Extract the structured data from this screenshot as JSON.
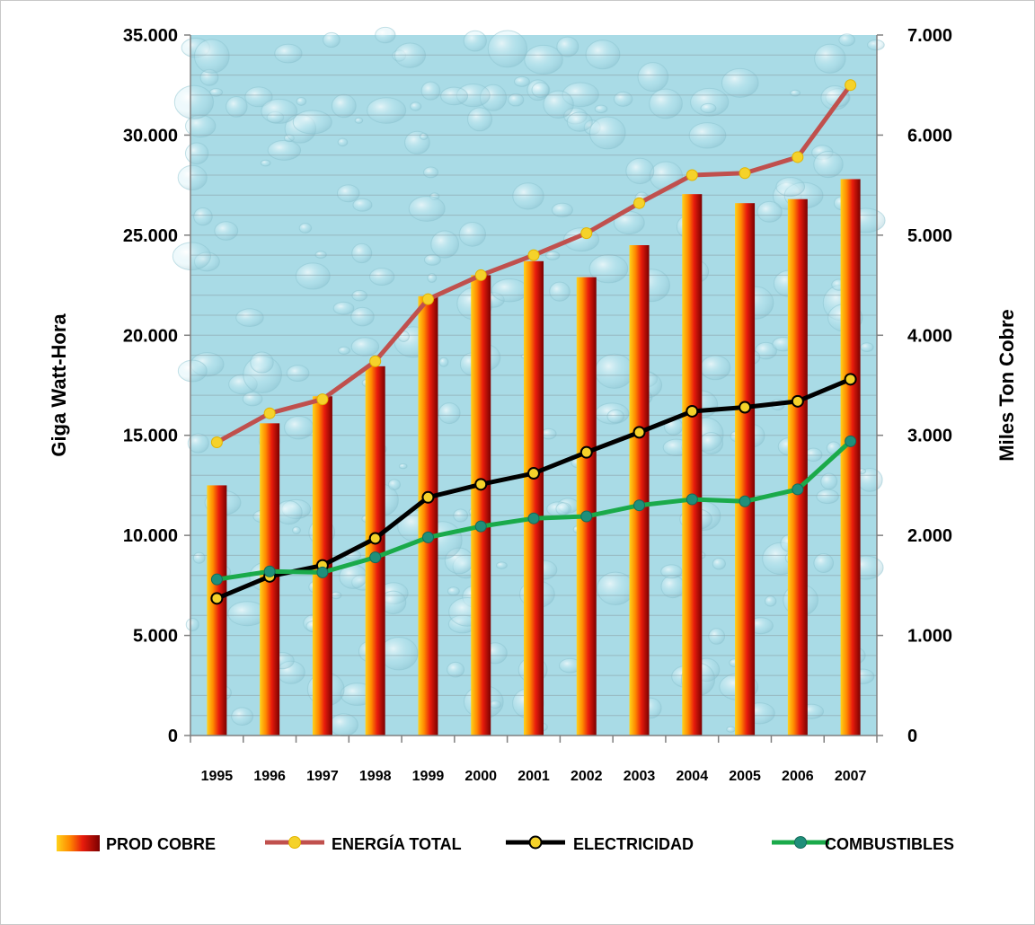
{
  "chart_data": {
    "type": "bar",
    "categories": [
      "1995",
      "1996",
      "1997",
      "1998",
      "1999",
      "2000",
      "2001",
      "2002",
      "2003",
      "2004",
      "2005",
      "2006",
      "2007"
    ],
    "y_left": {
      "label": "Giga Watt-Hora",
      "range": [
        0,
        35000
      ],
      "ticks": [
        "0",
        "5.000",
        "10.000",
        "15.000",
        "20.000",
        "25.000",
        "30.000",
        "35.000"
      ],
      "tick_values": [
        0,
        5000,
        10000,
        15000,
        20000,
        25000,
        30000,
        35000
      ]
    },
    "y_right": {
      "label": "Miles Ton Cobre",
      "range": [
        0,
        7000
      ],
      "ticks": [
        "0",
        "1.000",
        "2.000",
        "3.000",
        "4.000",
        "5.000",
        "6.000",
        "7.000"
      ],
      "tick_values": [
        0,
        1000,
        2000,
        3000,
        4000,
        5000,
        6000,
        7000
      ]
    },
    "series": [
      {
        "name": "PROD COBRE",
        "type": "bar",
        "axis": "right",
        "color": "#e2231a",
        "values": [
          2500,
          3120,
          3390,
          3690,
          4390,
          4600,
          4740,
          4580,
          4900,
          5410,
          5320,
          5360,
          5560
        ]
      },
      {
        "name": "ENERGÍA TOTAL",
        "type": "line",
        "axis": "left",
        "color": "#c0504d",
        "marker": "#f5d22a",
        "values": [
          14650,
          16100,
          16800,
          18700,
          21800,
          23000,
          24000,
          25100,
          26600,
          28000,
          28100,
          28900,
          32500
        ]
      },
      {
        "name": "ELECTRICIDAD",
        "type": "line",
        "axis": "left",
        "color": "#000000",
        "marker": "#f5d22a",
        "values": [
          6850,
          7950,
          8500,
          9850,
          11900,
          12550,
          13100,
          14150,
          15150,
          16200,
          16400,
          16700,
          17800
        ]
      },
      {
        "name": "COMBUSTIBLES",
        "type": "line",
        "axis": "left",
        "color": "#1aaa4a",
        "marker": "#1f8f7a",
        "values": [
          7800,
          8200,
          8150,
          8900,
          9900,
          10450,
          10850,
          10950,
          11500,
          11800,
          11700,
          12300,
          14700
        ]
      }
    ],
    "grid": true,
    "legend_position": "bottom"
  }
}
